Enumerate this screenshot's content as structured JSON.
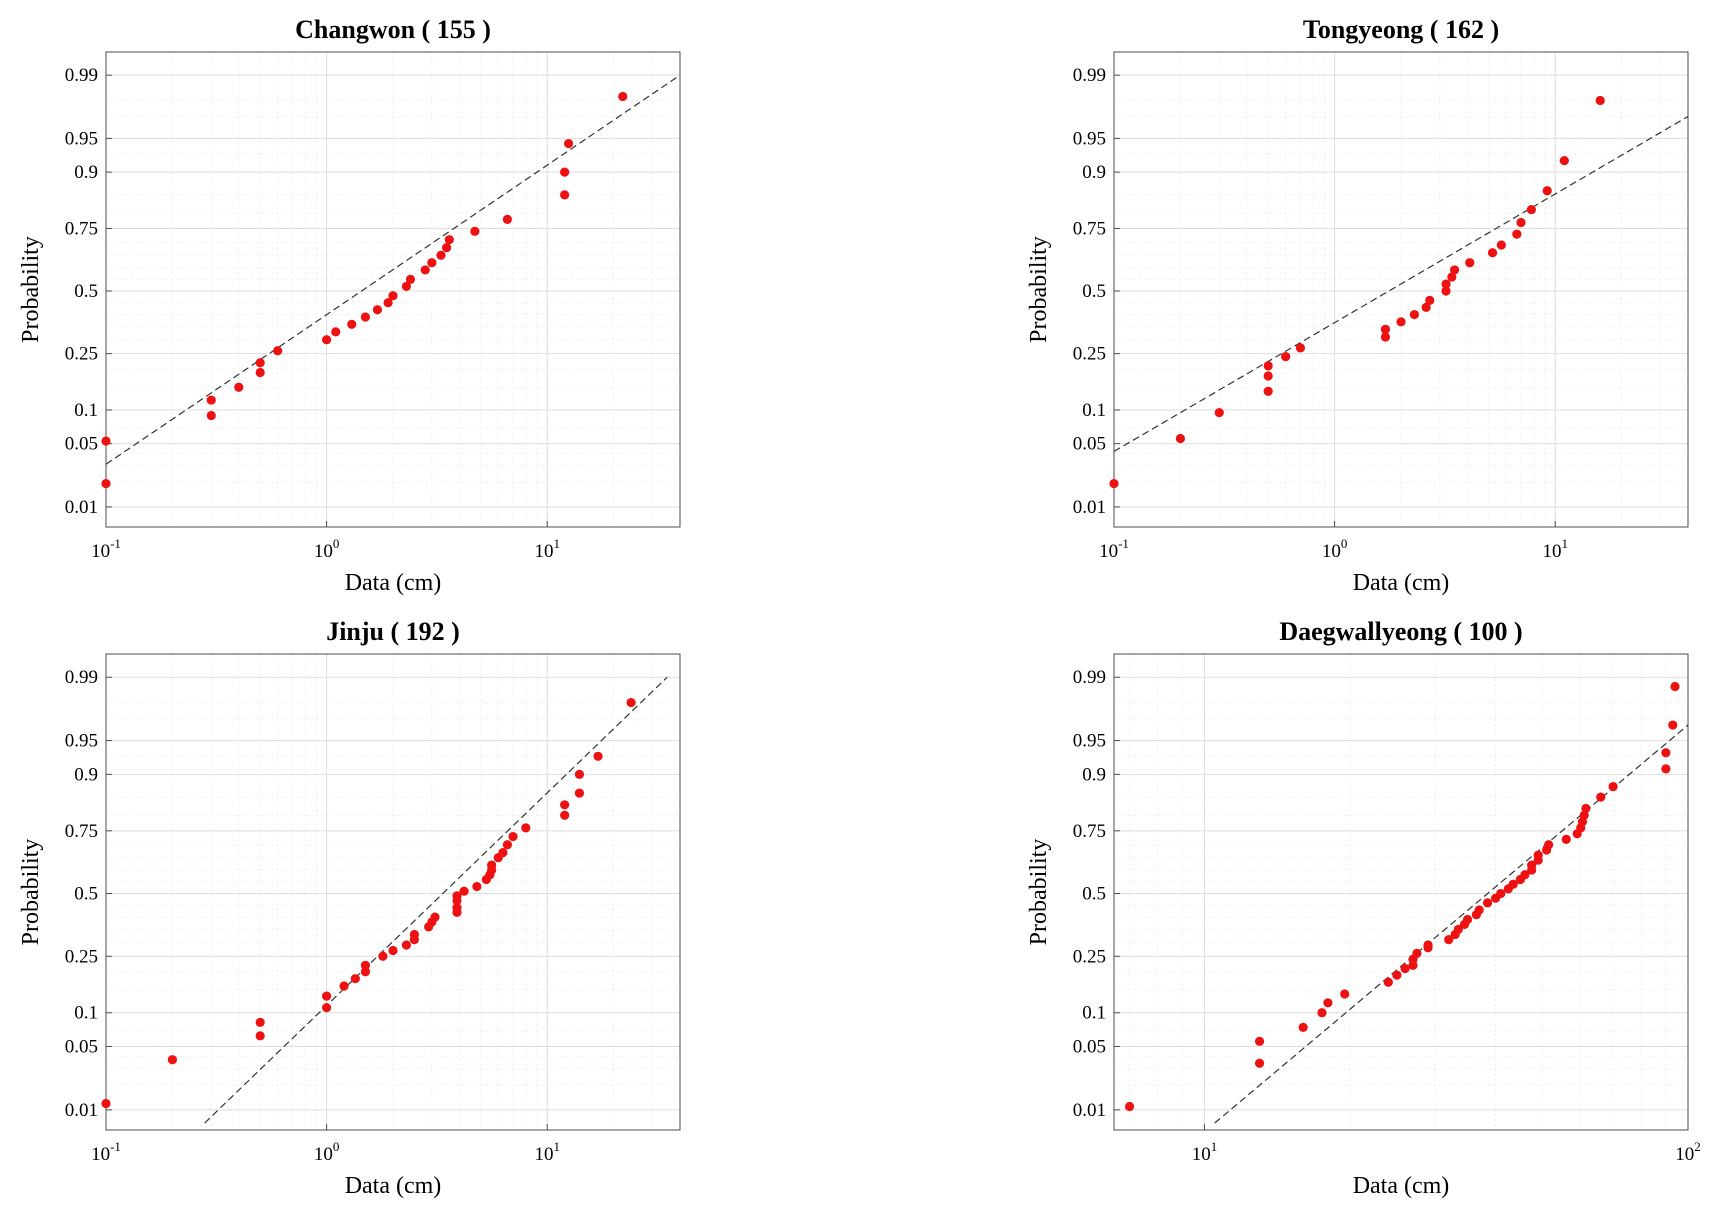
{
  "chart_data": [
    {
      "type": "scatter",
      "title": "Changwon ( 155 )",
      "xlabel": "Data (cm)",
      "ylabel": "Probability",
      "x_scale": "log",
      "y_scale": "normal-probability",
      "xlim": [
        0.1,
        40
      ],
      "x_ticks": [
        0.1,
        1,
        10
      ],
      "x_tick_labels": [
        {
          "base": "10",
          "exp": "-1"
        },
        {
          "base": "10",
          "exp": "0"
        },
        {
          "base": "10",
          "exp": "1"
        }
      ],
      "y_ticks": [
        0.01,
        0.05,
        0.1,
        0.25,
        0.5,
        0.75,
        0.9,
        0.95,
        0.99
      ],
      "y_tick_labels": [
        "0.01",
        "0.05",
        "0.1",
        "0.25",
        "0.5",
        "0.75",
        "0.9",
        "0.95",
        "0.99"
      ],
      "grid": true,
      "fit_line": {
        "style": "dashed",
        "points": [
          [
            0.1,
            0.031
          ],
          [
            40,
            0.99
          ]
        ]
      },
      "points": [
        [
          0.1,
          0.019
        ],
        [
          0.1,
          0.053
        ],
        [
          0.3,
          0.09
        ],
        [
          0.3,
          0.12
        ],
        [
          0.4,
          0.15
        ],
        [
          0.5,
          0.19
        ],
        [
          0.5,
          0.22
        ],
        [
          0.6,
          0.26
        ],
        [
          1.0,
          0.3
        ],
        [
          1.1,
          0.33
        ],
        [
          1.3,
          0.36
        ],
        [
          1.5,
          0.39
        ],
        [
          1.7,
          0.42
        ],
        [
          1.9,
          0.45
        ],
        [
          2.0,
          0.48
        ],
        [
          2.3,
          0.52
        ],
        [
          2.4,
          0.55
        ],
        [
          2.8,
          0.59
        ],
        [
          3.0,
          0.62
        ],
        [
          3.3,
          0.65
        ],
        [
          3.5,
          0.68
        ],
        [
          3.6,
          0.71
        ],
        [
          4.7,
          0.74
        ],
        [
          6.6,
          0.78
        ],
        [
          12,
          0.85
        ],
        [
          12,
          0.9
        ],
        [
          12.5,
          0.944
        ],
        [
          22,
          0.982
        ]
      ]
    },
    {
      "type": "scatter",
      "title": "Tongyeong ( 162 )",
      "xlabel": "Data (cm)",
      "ylabel": "Probability",
      "x_scale": "log",
      "y_scale": "normal-probability",
      "xlim": [
        0.1,
        40
      ],
      "x_ticks": [
        0.1,
        1,
        10
      ],
      "x_tick_labels": [
        {
          "base": "10",
          "exp": "-1"
        },
        {
          "base": "10",
          "exp": "0"
        },
        {
          "base": "10",
          "exp": "1"
        }
      ],
      "y_ticks": [
        0.01,
        0.05,
        0.1,
        0.25,
        0.5,
        0.75,
        0.9,
        0.95,
        0.99
      ],
      "y_tick_labels": [
        "0.01",
        "0.05",
        "0.1",
        "0.25",
        "0.5",
        "0.75",
        "0.9",
        "0.95",
        "0.99"
      ],
      "grid": true,
      "fit_line": {
        "style": "dashed",
        "points": [
          [
            0.1,
            0.042
          ],
          [
            40,
            0.97
          ]
        ]
      },
      "points": [
        [
          0.1,
          0.019
        ],
        [
          0.2,
          0.056
        ],
        [
          0.3,
          0.095
        ],
        [
          0.5,
          0.14
        ],
        [
          0.5,
          0.18
        ],
        [
          0.5,
          0.21
        ],
        [
          0.6,
          0.24
        ],
        [
          0.7,
          0.27
        ],
        [
          1.7,
          0.31
        ],
        [
          1.7,
          0.34
        ],
        [
          2.0,
          0.37
        ],
        [
          2.3,
          0.4
        ],
        [
          2.6,
          0.43
        ],
        [
          2.7,
          0.46
        ],
        [
          3.2,
          0.5
        ],
        [
          3.2,
          0.53
        ],
        [
          3.4,
          0.56
        ],
        [
          3.5,
          0.59
        ],
        [
          4.1,
          0.62
        ],
        [
          5.2,
          0.66
        ],
        [
          5.7,
          0.69
        ],
        [
          6.7,
          0.73
        ],
        [
          7.0,
          0.77
        ],
        [
          7.8,
          0.81
        ],
        [
          9.2,
          0.86
        ],
        [
          11,
          0.92
        ],
        [
          16,
          0.98
        ]
      ]
    },
    {
      "type": "scatter",
      "title": "Jinju ( 192 )",
      "xlabel": "Data (cm)",
      "ylabel": "Probability",
      "x_scale": "log",
      "y_scale": "normal-probability",
      "xlim": [
        0.1,
        40
      ],
      "x_ticks": [
        0.1,
        1,
        10
      ],
      "x_tick_labels": [
        {
          "base": "10",
          "exp": "-1"
        },
        {
          "base": "10",
          "exp": "0"
        },
        {
          "base": "10",
          "exp": "1"
        }
      ],
      "y_ticks": [
        0.01,
        0.05,
        0.1,
        0.25,
        0.5,
        0.75,
        0.9,
        0.95,
        0.99
      ],
      "y_tick_labels": [
        "0.01",
        "0.05",
        "0.1",
        "0.25",
        "0.5",
        "0.75",
        "0.9",
        "0.95",
        "0.99"
      ],
      "grid": true,
      "fit_line": {
        "style": "dashed",
        "points": [
          [
            0.28,
            0.0068
          ],
          [
            35,
            0.99
          ]
        ]
      },
      "points": [
        [
          0.1,
          0.012
        ],
        [
          0.2,
          0.037
        ],
        [
          0.5,
          0.063
        ],
        [
          0.5,
          0.083
        ],
        [
          1.0,
          0.11
        ],
        [
          1.0,
          0.135
        ],
        [
          1.2,
          0.16
        ],
        [
          1.35,
          0.18
        ],
        [
          1.5,
          0.2
        ],
        [
          1.5,
          0.22
        ],
        [
          1.8,
          0.25
        ],
        [
          2.0,
          0.27
        ],
        [
          2.3,
          0.29
        ],
        [
          2.5,
          0.31
        ],
        [
          2.5,
          0.33
        ],
        [
          2.9,
          0.36
        ],
        [
          3.0,
          0.38
        ],
        [
          3.1,
          0.4
        ],
        [
          3.9,
          0.42
        ],
        [
          3.9,
          0.44
        ],
        [
          3.9,
          0.47
        ],
        [
          3.9,
          0.49
        ],
        [
          4.2,
          0.51
        ],
        [
          4.8,
          0.53
        ],
        [
          5.3,
          0.56
        ],
        [
          5.5,
          0.58
        ],
        [
          5.6,
          0.6
        ],
        [
          5.6,
          0.62
        ],
        [
          6.0,
          0.65
        ],
        [
          6.3,
          0.67
        ],
        [
          6.6,
          0.7
        ],
        [
          7.0,
          0.73
        ],
        [
          8.0,
          0.76
        ],
        [
          12,
          0.8
        ],
        [
          12,
          0.83
        ],
        [
          14,
          0.86
        ],
        [
          14,
          0.9
        ],
        [
          17,
          0.93
        ],
        [
          24,
          0.98
        ]
      ]
    },
    {
      "type": "scatter",
      "title": "Daegwallyeong ( 100 )",
      "xlabel": "Data (cm)",
      "ylabel": "Probability",
      "x_scale": "log",
      "y_scale": "normal-probability",
      "xlim": [
        6.5,
        100
      ],
      "x_ticks": [
        10,
        100
      ],
      "x_tick_labels": [
        {
          "base": "10",
          "exp": "1"
        },
        {
          "base": "10",
          "exp": "2"
        }
      ],
      "y_ticks": [
        0.01,
        0.05,
        0.1,
        0.25,
        0.5,
        0.75,
        0.9,
        0.95,
        0.99
      ],
      "y_tick_labels": [
        "0.01",
        "0.05",
        "0.1",
        "0.25",
        "0.5",
        "0.75",
        "0.9",
        "0.95",
        "0.99"
      ],
      "grid": true,
      "fit_line": {
        "style": "dashed",
        "points": [
          [
            10.5,
            0.0068
          ],
          [
            100,
            0.965
          ]
        ]
      },
      "points": [
        [
          7,
          0.011
        ],
        [
          13,
          0.034
        ],
        [
          13,
          0.056
        ],
        [
          16,
          0.075
        ],
        [
          17.5,
          0.1
        ],
        [
          18,
          0.12
        ],
        [
          19.5,
          0.14
        ],
        [
          24,
          0.17
        ],
        [
          25,
          0.19
        ],
        [
          26,
          0.21
        ],
        [
          27,
          0.22
        ],
        [
          27,
          0.24
        ],
        [
          27.5,
          0.26
        ],
        [
          29,
          0.28
        ],
        [
          29,
          0.29
        ],
        [
          32,
          0.31
        ],
        [
          33,
          0.33
        ],
        [
          33.5,
          0.35
        ],
        [
          34.5,
          0.37
        ],
        [
          35,
          0.39
        ],
        [
          36.5,
          0.41
        ],
        [
          37,
          0.43
        ],
        [
          38.5,
          0.46
        ],
        [
          40,
          0.48
        ],
        [
          41,
          0.5
        ],
        [
          42.5,
          0.52
        ],
        [
          43.5,
          0.54
        ],
        [
          45,
          0.56
        ],
        [
          46,
          0.58
        ],
        [
          47.5,
          0.6
        ],
        [
          47.5,
          0.62
        ],
        [
          49,
          0.64
        ],
        [
          49,
          0.66
        ],
        [
          51,
          0.68
        ],
        [
          51.5,
          0.7
        ],
        [
          56,
          0.72
        ],
        [
          59,
          0.74
        ],
        [
          60,
          0.76
        ],
        [
          60.5,
          0.78
        ],
        [
          61,
          0.8
        ],
        [
          61.5,
          0.82
        ],
        [
          66,
          0.85
        ],
        [
          70,
          0.875
        ],
        [
          90,
          0.91
        ],
        [
          90,
          0.935
        ],
        [
          93,
          0.965
        ],
        [
          94,
          0.987
        ]
      ]
    }
  ],
  "style": {
    "point_color": "#ee1111",
    "fit_line_color": "#333333",
    "grid_major_color": "#dedede",
    "grid_minor_color": "#efefef",
    "axes_color": "#4d4d4d"
  }
}
